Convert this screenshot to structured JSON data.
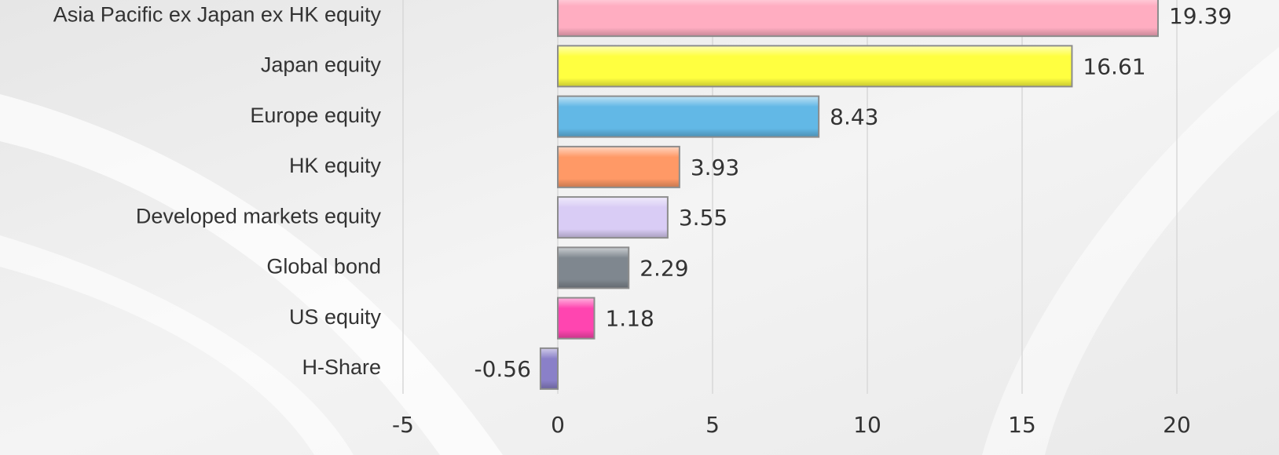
{
  "chart_data": {
    "type": "bar",
    "orientation": "horizontal",
    "categories": [
      "Asia Pacific ex Japan ex HK equity",
      "Japan equity",
      "Europe equity",
      "HK equity",
      "Developed markets equity",
      "Global bond",
      "US equity",
      "H-Share"
    ],
    "values": [
      19.39,
      16.61,
      8.43,
      3.93,
      3.55,
      2.29,
      1.18,
      -0.56
    ],
    "colors": [
      "#ffadc1",
      "#ffff40",
      "#62b8e6",
      "#ff9966",
      "#d9ccf5",
      "#7f878f",
      "#ff45b0",
      "#8a80c8"
    ],
    "xlim": [
      -5,
      20
    ],
    "xticks": [
      -5,
      0,
      5,
      10,
      15,
      20
    ],
    "grid": true
  }
}
